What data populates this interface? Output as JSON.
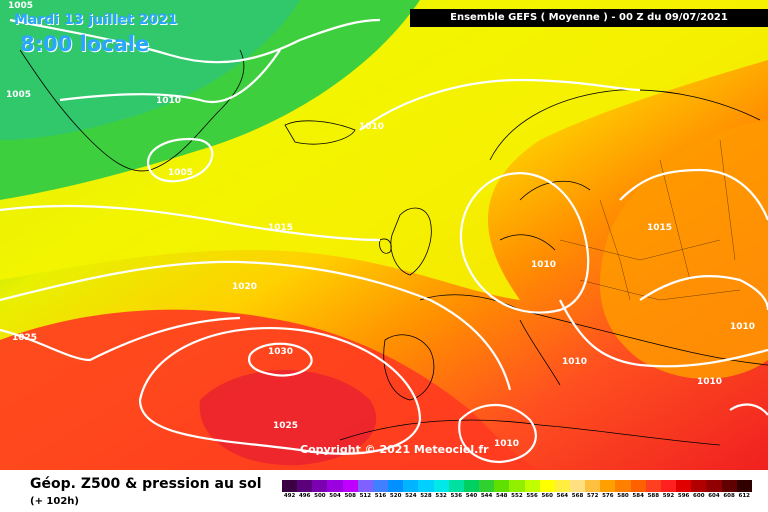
{
  "header": {
    "date": "Mardi 13 juillet 2021",
    "local_time": "8:00 locale",
    "run_info": "Ensemble GEFS  ( Moyenne )  - 00 Z du 09/07/2021"
  },
  "copyright": "Copyright © 2021 Meteociel.fr",
  "footer": {
    "title": "Géop. Z500 & pression au sol",
    "lead": "(+ 102h)"
  },
  "isobar_labels": [
    "1005",
    "1005",
    "1010",
    "1005",
    "1010",
    "1015",
    "1015",
    "1010",
    "1020",
    "1025",
    "1030",
    "1025",
    "1010",
    "1010",
    "1010",
    "1010"
  ],
  "legend": {
    "values": [
      "492",
      "496",
      "500",
      "504",
      "508",
      "512",
      "516",
      "520",
      "524",
      "528",
      "532",
      "536",
      "540",
      "544",
      "548",
      "552",
      "556",
      "560",
      "564",
      "568",
      "572",
      "576",
      "580",
      "584",
      "588",
      "592",
      "596",
      "600",
      "604",
      "608",
      "612"
    ],
    "colors": [
      "#3a0042",
      "#5a007a",
      "#7a00b0",
      "#9b00e0",
      "#c000ff",
      "#8060ff",
      "#4080ff",
      "#0090ff",
      "#00b4ff",
      "#00d0ff",
      "#00e8e8",
      "#00e0a0",
      "#00d060",
      "#30d030",
      "#60e000",
      "#90f000",
      "#c0ff00",
      "#ffff00",
      "#ffee40",
      "#ffe080",
      "#ffc040",
      "#ffa000",
      "#ff8000",
      "#ff6000",
      "#ff4020",
      "#ff2020",
      "#e00000",
      "#b00000",
      "#900000",
      "#600000",
      "#300000"
    ]
  }
}
